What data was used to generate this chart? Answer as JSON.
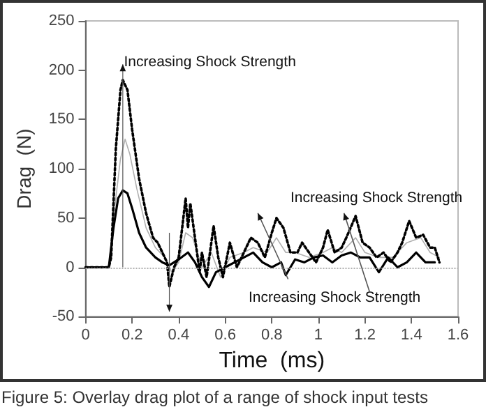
{
  "chart_data": {
    "type": "line",
    "xlabel": "Time  (ms)",
    "ylabel": "Drag  (N)",
    "xlim": [
      0,
      1.6
    ],
    "xticks": [
      0,
      0.2,
      0.4,
      0.6,
      0.8,
      1,
      1.2,
      1.4,
      1.6
    ],
    "ylim": [
      -50,
      250
    ],
    "yticks": [
      -50,
      0,
      50,
      100,
      150,
      200,
      250
    ],
    "grid": false,
    "marker": "none",
    "series": [
      {
        "color": "#b0b0b0",
        "line_style": "solid",
        "x": [
          0,
          0.1,
          0.12,
          0.15,
          0.17,
          0.19,
          0.22,
          0.26,
          0.3,
          0.34,
          0.37,
          0.4,
          0.43,
          0.46,
          0.5,
          0.54,
          0.58,
          0.62,
          0.68,
          0.72,
          0.78,
          0.82,
          0.86,
          0.9,
          0.96,
          1.02,
          1.06,
          1.1,
          1.16,
          1.2,
          1.26,
          1.32,
          1.38,
          1.44,
          1.48,
          1.52
        ],
        "values": [
          0,
          0,
          50,
          110,
          130,
          115,
          80,
          40,
          20,
          10,
          -5,
          5,
          35,
          30,
          0,
          15,
          -10,
          10,
          15,
          20,
          15,
          30,
          15,
          15,
          10,
          15,
          20,
          15,
          30,
          15,
          10,
          10,
          25,
          30,
          15,
          10
        ]
      },
      {
        "color": "#000000",
        "line_style": "solid",
        "x": [
          0,
          0.1,
          0.12,
          0.14,
          0.16,
          0.18,
          0.2,
          0.23,
          0.26,
          0.3,
          0.33,
          0.36,
          0.38,
          0.4,
          0.44,
          0.47,
          0.5,
          0.53,
          0.56,
          0.6,
          0.64,
          0.68,
          0.72,
          0.76,
          0.8,
          0.84,
          0.86,
          0.9,
          0.94,
          0.98,
          1.02,
          1.06,
          1.1,
          1.14,
          1.18,
          1.22,
          1.26,
          1.3,
          1.34,
          1.38,
          1.42,
          1.46,
          1.5
        ],
        "values": [
          0,
          0,
          40,
          70,
          78,
          75,
          60,
          35,
          20,
          10,
          5,
          2,
          5,
          8,
          15,
          5,
          -10,
          -20,
          -5,
          0,
          5,
          10,
          15,
          5,
          0,
          5,
          -8,
          8,
          5,
          10,
          12,
          5,
          12,
          15,
          10,
          10,
          -5,
          10,
          0,
          5,
          15,
          5,
          5
        ]
      },
      {
        "color": "#000000",
        "line_style": "dotted",
        "x": [
          0,
          0.1,
          0.11,
          0.13,
          0.15,
          0.16,
          0.18,
          0.2,
          0.23,
          0.26,
          0.29,
          0.31,
          0.33,
          0.35,
          0.36,
          0.38,
          0.4,
          0.42,
          0.43,
          0.44,
          0.45,
          0.47,
          0.49,
          0.5,
          0.52,
          0.55,
          0.57,
          0.59,
          0.62,
          0.65,
          0.68,
          0.71,
          0.74,
          0.77,
          0.8,
          0.82,
          0.85,
          0.88,
          0.91,
          0.93,
          0.96,
          0.99,
          1.02,
          1.04,
          1.07,
          1.1,
          1.12,
          1.16,
          1.19,
          1.22,
          1.25,
          1.28,
          1.31,
          1.34,
          1.36,
          1.39,
          1.42,
          1.45,
          1.48,
          1.5,
          1.52
        ],
        "values": [
          0,
          0,
          10,
          120,
          180,
          190,
          180,
          140,
          90,
          55,
          30,
          25,
          15,
          5,
          -20,
          0,
          10,
          50,
          70,
          40,
          65,
          30,
          -5,
          15,
          -10,
          42,
          10,
          -10,
          25,
          0,
          15,
          30,
          25,
          10,
          35,
          50,
          40,
          15,
          15,
          25,
          15,
          5,
          20,
          38,
          15,
          20,
          30,
          52,
          25,
          20,
          10,
          15,
          5,
          15,
          25,
          47,
          30,
          33,
          20,
          20,
          5
        ]
      }
    ],
    "ref_lines": [
      {
        "axis": "y",
        "value": 0,
        "color": "#b0b0b0",
        "line_style": "dotted"
      }
    ],
    "annotations": [
      "Increasing Shock Strength",
      "Increasing Shock Strength",
      "Increasing Shock Strength",
      "Figure 5: Overlay drag plot of a range of shock input tests"
    ]
  }
}
